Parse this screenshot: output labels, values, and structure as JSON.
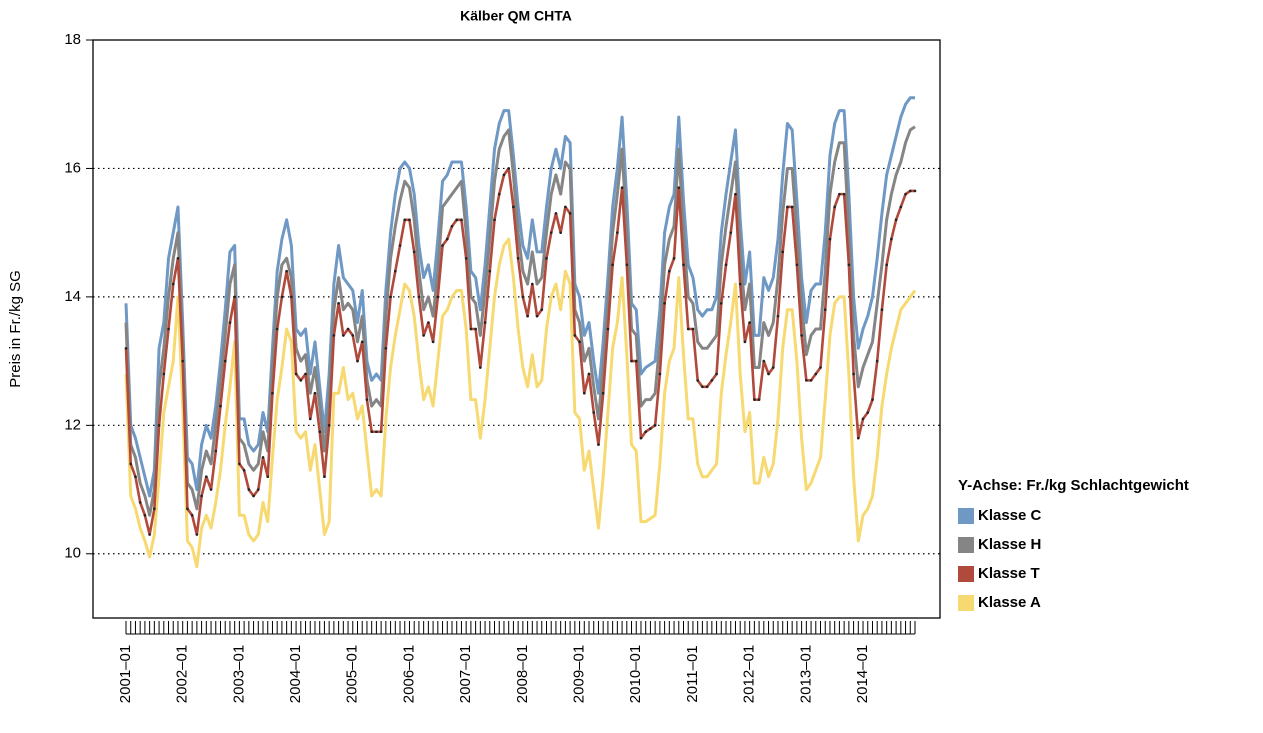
{
  "chart_data": {
    "type": "line",
    "title": "Kälber QM CHTA",
    "y_label": "Preis in Fr./kg SG",
    "legend_title": "Y-Achse: Fr./kg Schlachtgewicht",
    "legend_position": "right",
    "ylim": [
      9,
      18
    ],
    "yticks": [
      10,
      12,
      14,
      16,
      18
    ],
    "grid": true,
    "categories": [
      "2001–01",
      null,
      null,
      null,
      null,
      null,
      null,
      null,
      null,
      null,
      null,
      null,
      "2002–01",
      null,
      null,
      null,
      null,
      null,
      null,
      null,
      null,
      null,
      null,
      null,
      "2003–01",
      null,
      null,
      null,
      null,
      null,
      null,
      null,
      null,
      null,
      null,
      null,
      "2004–01",
      null,
      null,
      null,
      null,
      null,
      null,
      null,
      null,
      null,
      null,
      null,
      "2005–01",
      null,
      null,
      null,
      null,
      null,
      null,
      null,
      null,
      null,
      null,
      null,
      "2006–01",
      null,
      null,
      null,
      null,
      null,
      null,
      null,
      null,
      null,
      null,
      null,
      "2007–01",
      null,
      null,
      null,
      null,
      null,
      null,
      null,
      null,
      null,
      null,
      null,
      "2008–01",
      null,
      null,
      null,
      null,
      null,
      null,
      null,
      null,
      null,
      null,
      null,
      "2009–01",
      null,
      null,
      null,
      null,
      null,
      null,
      null,
      null,
      null,
      null,
      null,
      "2010–01",
      null,
      null,
      null,
      null,
      null,
      null,
      null,
      null,
      null,
      null,
      null,
      "2011–01",
      null,
      null,
      null,
      null,
      null,
      null,
      null,
      null,
      null,
      null,
      null,
      "2012–01",
      null,
      null,
      null,
      null,
      null,
      null,
      null,
      null,
      null,
      null,
      null,
      "2013–01",
      null,
      null,
      null,
      null,
      null,
      null,
      null,
      null,
      null,
      null,
      null,
      "2014–01",
      null,
      null,
      null,
      null,
      null,
      null,
      null,
      null,
      null,
      null,
      null
    ],
    "series": [
      {
        "name": "Klasse C",
        "color": "#6f98c4",
        "values": [
          13.9,
          12.0,
          11.8,
          11.5,
          11.2,
          10.9,
          11.3,
          13.2,
          13.6,
          14.6,
          15.0,
          15.4,
          13.6,
          11.5,
          11.4,
          11.0,
          11.7,
          12.0,
          11.8,
          12.3,
          13.0,
          13.8,
          14.7,
          14.8,
          12.1,
          12.1,
          11.7,
          11.6,
          11.7,
          12.2,
          11.9,
          13.2,
          14.4,
          14.9,
          15.2,
          14.8,
          13.5,
          13.4,
          13.5,
          12.8,
          13.3,
          12.6,
          11.9,
          12.8,
          14.2,
          14.8,
          14.3,
          14.2,
          14.1,
          13.6,
          14.1,
          13.0,
          12.7,
          12.8,
          12.7,
          14.1,
          15.0,
          15.6,
          16.0,
          16.1,
          16.0,
          15.6,
          14.8,
          14.3,
          14.5,
          14.1,
          14.9,
          15.8,
          15.9,
          16.1,
          16.1,
          16.1,
          15.4,
          14.4,
          14.3,
          13.8,
          14.5,
          15.4,
          16.3,
          16.7,
          16.9,
          16.9,
          16.2,
          15.4,
          14.8,
          14.6,
          15.2,
          14.7,
          14.7,
          15.4,
          16.0,
          16.3,
          16.0,
          16.5,
          16.4,
          14.2,
          14.0,
          13.4,
          13.6,
          13.0,
          12.5,
          13.3,
          14.3,
          15.4,
          16.0,
          16.8,
          15.5,
          13.9,
          13.8,
          12.8,
          12.9,
          12.95,
          13.0,
          13.8,
          15.0,
          15.4,
          15.6,
          16.8,
          15.5,
          14.5,
          14.3,
          13.8,
          13.7,
          13.8,
          13.8,
          14.0,
          15.0,
          15.6,
          16.1,
          16.6,
          15.2,
          14.2,
          14.7,
          13.4,
          13.4,
          14.3,
          14.1,
          14.3,
          14.9,
          15.9,
          16.7,
          16.6,
          15.5,
          14.3,
          13.6,
          14.1,
          14.2,
          14.2,
          15.0,
          16.2,
          16.7,
          16.9,
          16.9,
          15.6,
          14.0,
          13.2,
          13.5,
          13.7,
          14.0,
          14.6,
          15.3,
          15.9,
          16.2,
          16.5,
          16.8,
          17.0,
          17.1,
          17.1
        ]
      },
      {
        "name": "Klasse H",
        "color": "#858585",
        "values": [
          13.6,
          11.7,
          11.5,
          11.1,
          10.9,
          10.6,
          11.0,
          12.6,
          13.2,
          14.0,
          14.6,
          15.0,
          13.3,
          11.1,
          11.0,
          10.7,
          11.3,
          11.6,
          11.4,
          12.0,
          12.7,
          13.4,
          14.2,
          14.5,
          11.8,
          11.7,
          11.4,
          11.3,
          11.4,
          11.9,
          11.6,
          12.9,
          14.0,
          14.5,
          14.6,
          14.3,
          13.2,
          13.0,
          13.1,
          12.5,
          12.9,
          12.3,
          11.6,
          12.4,
          13.8,
          14.3,
          13.8,
          13.9,
          13.8,
          13.3,
          13.7,
          12.7,
          12.3,
          12.4,
          12.3,
          13.7,
          14.6,
          15.1,
          15.5,
          15.8,
          15.7,
          15.2,
          14.4,
          13.8,
          14.0,
          13.7,
          14.4,
          15.4,
          15.5,
          15.6,
          15.7,
          15.8,
          15.0,
          14.0,
          13.9,
          13.4,
          14.1,
          14.9,
          15.8,
          16.3,
          16.5,
          16.6,
          15.9,
          15.0,
          14.4,
          14.2,
          14.7,
          14.2,
          14.3,
          15.0,
          15.6,
          15.9,
          15.6,
          16.1,
          16.0,
          13.8,
          13.6,
          13.0,
          13.2,
          12.6,
          12.1,
          12.9,
          13.9,
          15.0,
          15.6,
          16.3,
          15.0,
          13.5,
          13.4,
          12.3,
          12.4,
          12.4,
          12.5,
          13.3,
          14.5,
          14.9,
          15.1,
          16.3,
          15.0,
          14.0,
          13.9,
          13.3,
          13.2,
          13.2,
          13.3,
          13.4,
          14.5,
          15.1,
          15.6,
          16.1,
          14.7,
          13.8,
          14.2,
          12.9,
          12.9,
          13.6,
          13.4,
          13.6,
          14.3,
          15.3,
          16.0,
          16.0,
          15.0,
          13.9,
          13.1,
          13.4,
          13.5,
          13.5,
          14.4,
          15.6,
          16.1,
          16.4,
          16.4,
          15.0,
          13.4,
          12.6,
          12.9,
          13.1,
          13.3,
          13.9,
          14.5,
          15.2,
          15.6,
          15.9,
          16.1,
          16.4,
          16.6,
          16.65
        ]
      },
      {
        "name": "Klasse T",
        "color": "#b04a3c",
        "marker": true,
        "values": [
          13.2,
          11.4,
          11.2,
          10.8,
          10.6,
          10.3,
          10.7,
          12.0,
          12.8,
          13.5,
          14.2,
          14.6,
          13.0,
          10.7,
          10.6,
          10.3,
          10.9,
          11.2,
          11.0,
          11.6,
          12.3,
          13.0,
          13.6,
          14.0,
          11.4,
          11.3,
          11.0,
          10.9,
          11.0,
          11.5,
          11.2,
          12.5,
          13.5,
          14.0,
          14.4,
          14.0,
          12.8,
          12.7,
          12.8,
          12.1,
          12.5,
          11.9,
          11.2,
          12.0,
          13.4,
          13.9,
          13.4,
          13.5,
          13.4,
          13.0,
          13.3,
          12.4,
          11.9,
          11.9,
          11.9,
          13.2,
          14.0,
          14.4,
          14.8,
          15.2,
          15.2,
          14.7,
          14.0,
          13.4,
          13.6,
          13.3,
          14.0,
          14.8,
          14.9,
          15.1,
          15.2,
          15.2,
          14.6,
          13.5,
          13.5,
          12.9,
          13.6,
          14.4,
          15.2,
          15.6,
          15.9,
          16.0,
          15.4,
          14.6,
          14.0,
          13.7,
          14.2,
          13.7,
          13.8,
          14.6,
          15.0,
          15.3,
          15.0,
          15.4,
          15.3,
          13.4,
          13.3,
          12.5,
          12.8,
          12.2,
          11.7,
          12.5,
          13.5,
          14.5,
          15.0,
          15.7,
          14.5,
          13.0,
          13.0,
          11.8,
          11.9,
          11.95,
          12.0,
          12.8,
          13.9,
          14.4,
          14.6,
          15.7,
          14.5,
          13.5,
          13.5,
          12.7,
          12.6,
          12.6,
          12.7,
          12.8,
          13.9,
          14.5,
          15.0,
          15.6,
          14.2,
          13.3,
          13.6,
          12.4,
          12.4,
          13.0,
          12.8,
          12.9,
          13.7,
          14.7,
          15.4,
          15.4,
          14.5,
          13.4,
          12.7,
          12.7,
          12.8,
          12.9,
          13.8,
          14.9,
          15.4,
          15.6,
          15.6,
          14.5,
          12.8,
          11.8,
          12.1,
          12.2,
          12.4,
          13.0,
          13.8,
          14.5,
          14.9,
          15.2,
          15.4,
          15.6,
          15.65,
          15.65
        ]
      },
      {
        "name": "Klasse A",
        "color": "#f7d972",
        "values": [
          12.8,
          10.9,
          10.7,
          10.4,
          10.2,
          9.95,
          10.3,
          11.2,
          12.2,
          12.6,
          13.0,
          14.0,
          12.3,
          10.2,
          10.1,
          9.8,
          10.4,
          10.6,
          10.4,
          10.8,
          11.3,
          12.0,
          12.6,
          13.3,
          10.6,
          10.6,
          10.3,
          10.2,
          10.3,
          10.8,
          10.5,
          11.5,
          12.4,
          12.9,
          13.5,
          13.3,
          11.9,
          11.8,
          11.9,
          11.3,
          11.7,
          11.0,
          10.3,
          10.5,
          12.5,
          12.5,
          12.9,
          12.4,
          12.5,
          12.1,
          12.3,
          11.6,
          10.9,
          11.0,
          10.9,
          12.1,
          12.9,
          13.4,
          13.8,
          14.2,
          14.1,
          13.7,
          13.0,
          12.4,
          12.6,
          12.3,
          13.0,
          13.7,
          13.8,
          14.0,
          14.1,
          14.1,
          13.5,
          12.4,
          12.4,
          11.8,
          12.4,
          13.2,
          14.0,
          14.5,
          14.8,
          14.9,
          14.3,
          13.5,
          12.9,
          12.6,
          13.1,
          12.6,
          12.7,
          13.5,
          14.0,
          14.2,
          13.8,
          14.4,
          14.2,
          12.2,
          12.1,
          11.3,
          11.6,
          11.0,
          10.4,
          11.2,
          12.2,
          13.2,
          13.6,
          14.3,
          13.1,
          11.7,
          11.6,
          10.5,
          10.5,
          10.55,
          10.6,
          11.4,
          12.5,
          13.0,
          13.2,
          14.3,
          13.1,
          12.1,
          12.1,
          11.4,
          11.2,
          11.2,
          11.3,
          11.4,
          12.5,
          13.1,
          13.6,
          14.2,
          12.8,
          11.9,
          12.2,
          11.1,
          11.1,
          11.5,
          11.2,
          11.4,
          12.1,
          13.2,
          13.8,
          13.8,
          13.0,
          11.8,
          11.0,
          11.1,
          11.3,
          11.5,
          12.4,
          13.4,
          13.9,
          14.0,
          14.0,
          12.8,
          11.2,
          10.2,
          10.6,
          10.7,
          10.9,
          11.5,
          12.3,
          12.8,
          13.2,
          13.5,
          13.8,
          13.9,
          14.0,
          14.1
        ]
      }
    ],
    "draw_order": [
      3,
      0,
      1,
      2
    ]
  }
}
